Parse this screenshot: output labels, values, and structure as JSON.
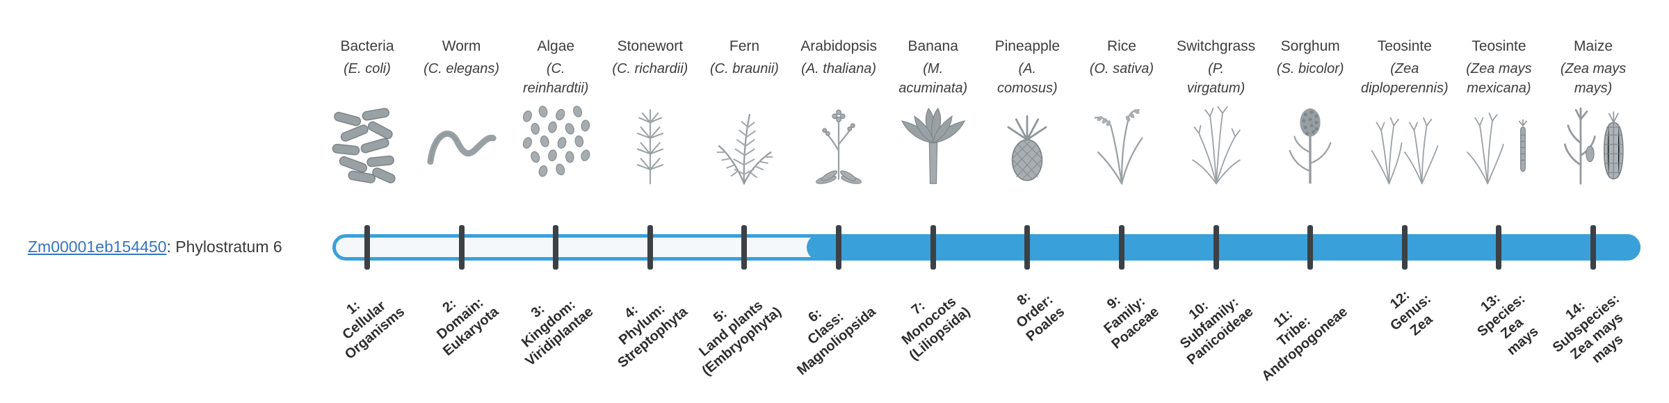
{
  "gene": {
    "id": "Zm00001eb154450",
    "suffix": ": Phylostratum 6",
    "link_color": "#3474C0"
  },
  "bar": {
    "blue": "#3AA0D9",
    "track_bg": "#F4F8FA",
    "tick_color": "#3C4145",
    "filled_from_stratum": 6,
    "total_strata": 14
  },
  "strata": [
    {
      "stratum": 1,
      "label_lines": [
        "1:",
        "Cellular",
        "Organisms"
      ],
      "organism": {
        "name": "Bacteria",
        "sci_lines": [
          "(E. coli)"
        ],
        "icon": "bacteria-icon"
      }
    },
    {
      "stratum": 2,
      "label_lines": [
        "2:",
        "Domain:",
        "Eukaryota"
      ],
      "organism": {
        "name": "Worm",
        "sci_lines": [
          "(C. elegans)"
        ],
        "icon": "worm-icon"
      }
    },
    {
      "stratum": 3,
      "label_lines": [
        "3:",
        "Kingdom:",
        "Viridiplantae"
      ],
      "organism": {
        "name": "Algae",
        "sci_lines": [
          "(C.",
          "reinhardtii)"
        ],
        "icon": "algae-icon"
      }
    },
    {
      "stratum": 4,
      "label_lines": [
        "4:",
        "Phylum:",
        "Streptophyta"
      ],
      "organism": {
        "name": "Stonewort",
        "sci_lines": [
          "(C. richardii)"
        ],
        "icon": "stonewort-icon"
      }
    },
    {
      "stratum": 5,
      "label_lines": [
        "5:",
        "Land plants",
        "(Embryophyta)"
      ],
      "organism": {
        "name": "Fern",
        "sci_lines": [
          "(C. braunii)"
        ],
        "icon": "fern-icon"
      }
    },
    {
      "stratum": 6,
      "label_lines": [
        "6:",
        "Class:",
        "Magnoliopsida"
      ],
      "organism": {
        "name": "Arabidopsis",
        "sci_lines": [
          "(A. thaliana)"
        ],
        "icon": "arabidopsis-icon"
      }
    },
    {
      "stratum": 7,
      "label_lines": [
        "7:",
        "Monocots",
        "(Liliopsida)"
      ],
      "organism": {
        "name": "Banana",
        "sci_lines": [
          "(M.",
          "acuminata)"
        ],
        "icon": "banana-icon"
      }
    },
    {
      "stratum": 8,
      "label_lines": [
        "8:",
        "Order:",
        "Poales"
      ],
      "organism": {
        "name": "Pineapple",
        "sci_lines": [
          "(A.",
          "comosus)"
        ],
        "icon": "pineapple-icon"
      }
    },
    {
      "stratum": 9,
      "label_lines": [
        "9:",
        "Family:",
        "Poaceae"
      ],
      "organism": {
        "name": "Rice",
        "sci_lines": [
          "(O. sativa)"
        ],
        "icon": "rice-icon"
      }
    },
    {
      "stratum": 10,
      "label_lines": [
        "10:",
        "Subfamily:",
        "Panicoideae"
      ],
      "organism": {
        "name": "Switchgrass",
        "sci_lines": [
          "(P.",
          "virgatum)"
        ],
        "icon": "switchgrass-icon"
      }
    },
    {
      "stratum": 11,
      "label_lines": [
        "11:",
        "Tribe:",
        "Andropogoneae"
      ],
      "organism": {
        "name": "Sorghum",
        "sci_lines": [
          "(S. bicolor)"
        ],
        "icon": "sorghum-icon"
      }
    },
    {
      "stratum": 12,
      "label_lines": [
        "12:",
        "Genus:",
        "Zea"
      ],
      "organism": {
        "name": "Teosinte",
        "sci_lines": [
          "(Zea",
          "diploperennis)"
        ],
        "icon": "teosinte-diplo-icon"
      }
    },
    {
      "stratum": 13,
      "label_lines": [
        "13:",
        "Species:",
        "Zea",
        "mays"
      ],
      "organism": {
        "name": "Teosinte",
        "sci_lines": [
          "(Zea mays",
          "mexicana)"
        ],
        "icon": "teosinte-mex-icon"
      }
    },
    {
      "stratum": 14,
      "label_lines": [
        "14:",
        "Subspecies:",
        "Zea mays",
        "mays"
      ],
      "organism": {
        "name": "Maize",
        "sci_lines": [
          "(Zea mays",
          "mays)"
        ],
        "icon": "maize-icon"
      }
    }
  ],
  "chart_data": {
    "type": "bar",
    "title": "Gene phylostratigraphy",
    "gene": "Zm00001eb154450",
    "phylostratum": 6,
    "categories": [
      "1: Cellular Organisms",
      "2: Domain: Eukaryota",
      "3: Kingdom: Viridiplantae",
      "4: Phylum: Streptophyta",
      "5: Land plants (Embryophyta)",
      "6: Class: Magnoliopsida",
      "7: Monocots (Liliopsida)",
      "8: Order: Poales",
      "9: Family: Poaceae",
      "10: Subfamily: Panicoideae",
      "11: Tribe: Andropogoneae",
      "12: Genus: Zea",
      "13: Species: Zea mays",
      "14: Subspecies: Zea mays mays"
    ],
    "organisms": [
      "Bacteria (E. coli)",
      "Worm (C. elegans)",
      "Algae (C. reinhardtii)",
      "Stonewort (C. richardii)",
      "Fern (C. braunii)",
      "Arabidopsis (A. thaliana)",
      "Banana (M. acuminata)",
      "Pineapple (A. comosus)",
      "Rice (O. sativa)",
      "Switchgrass (P. virgatum)",
      "Sorghum (S. bicolor)",
      "Teosinte (Zea diploperennis)",
      "Teosinte (Zea mays mexicana)",
      "Maize (Zea mays mays)"
    ],
    "series": [
      {
        "name": "Zm00001eb154450",
        "filled_from": 6,
        "filled_to": 14
      }
    ]
  }
}
